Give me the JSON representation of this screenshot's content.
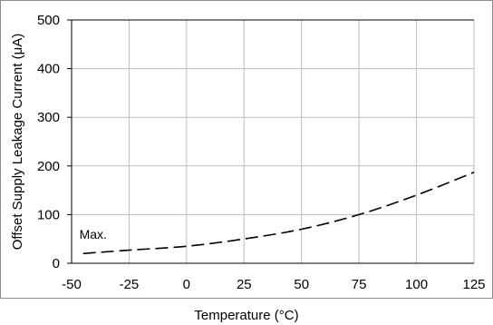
{
  "chart_data": {
    "type": "line",
    "xlabel": "Temperature (°C)",
    "ylabel": "Offset Supply Leakage Current (μA)",
    "xlim": [
      -50,
      125
    ],
    "ylim": [
      0,
      500
    ],
    "x_ticks": [
      -50,
      -25,
      0,
      25,
      50,
      75,
      100,
      125
    ],
    "y_ticks": [
      0,
      100,
      200,
      300,
      400,
      500
    ],
    "grid": true,
    "series": [
      {
        "x": [
          -45,
          -25,
          0,
          25,
          50,
          75,
          100,
          125
        ],
        "values": [
          20,
          27,
          35,
          50,
          70,
          100,
          140,
          187
        ],
        "style": "dashed",
        "color": "#000000"
      }
    ],
    "annotations": [
      {
        "text": "Max.",
        "x": -47,
        "y": 60
      }
    ]
  }
}
